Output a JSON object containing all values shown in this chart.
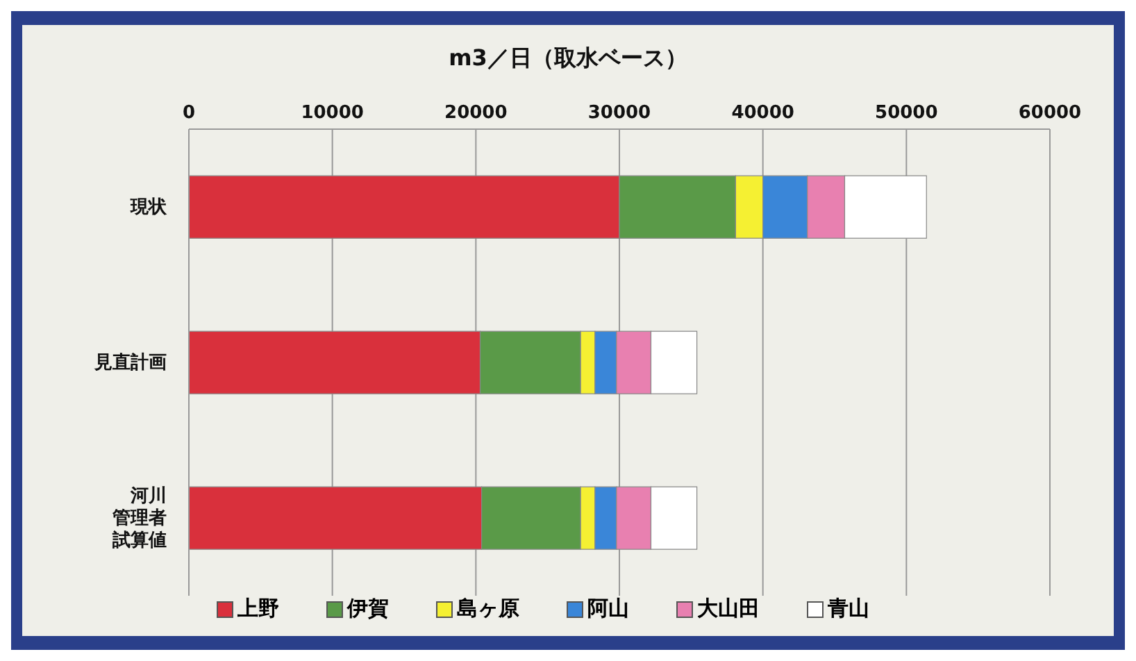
{
  "chart_data": {
    "type": "bar",
    "orientation": "horizontal",
    "stacked": true,
    "xlabel": "m3／日（取水ベース）",
    "categories": [
      "現状",
      "見直計画",
      "河川管理者試算値"
    ],
    "series": [
      {
        "name": "上野",
        "color": "#d9303c",
        "values": [
          30000,
          20300,
          20400
        ]
      },
      {
        "name": "伊賀",
        "color": "#5a9a48",
        "values": [
          8100,
          7000,
          6900
        ]
      },
      {
        "name": "島ヶ原",
        "color": "#f5f032",
        "values": [
          1900,
          1000,
          1000
        ]
      },
      {
        "name": "阿山",
        "color": "#3a86d8",
        "values": [
          3100,
          1500,
          1500
        ]
      },
      {
        "name": "大山田",
        "color": "#e880b0",
        "values": [
          2600,
          2400,
          2400
        ]
      },
      {
        "name": "青山",
        "color": "#ffffff",
        "values": [
          5700,
          3200,
          3200
        ]
      }
    ],
    "xlim": [
      0,
      60000
    ],
    "xticks": [
      0,
      10000,
      20000,
      30000,
      40000,
      50000,
      60000
    ],
    "grid": "x",
    "legend": "bottom"
  }
}
